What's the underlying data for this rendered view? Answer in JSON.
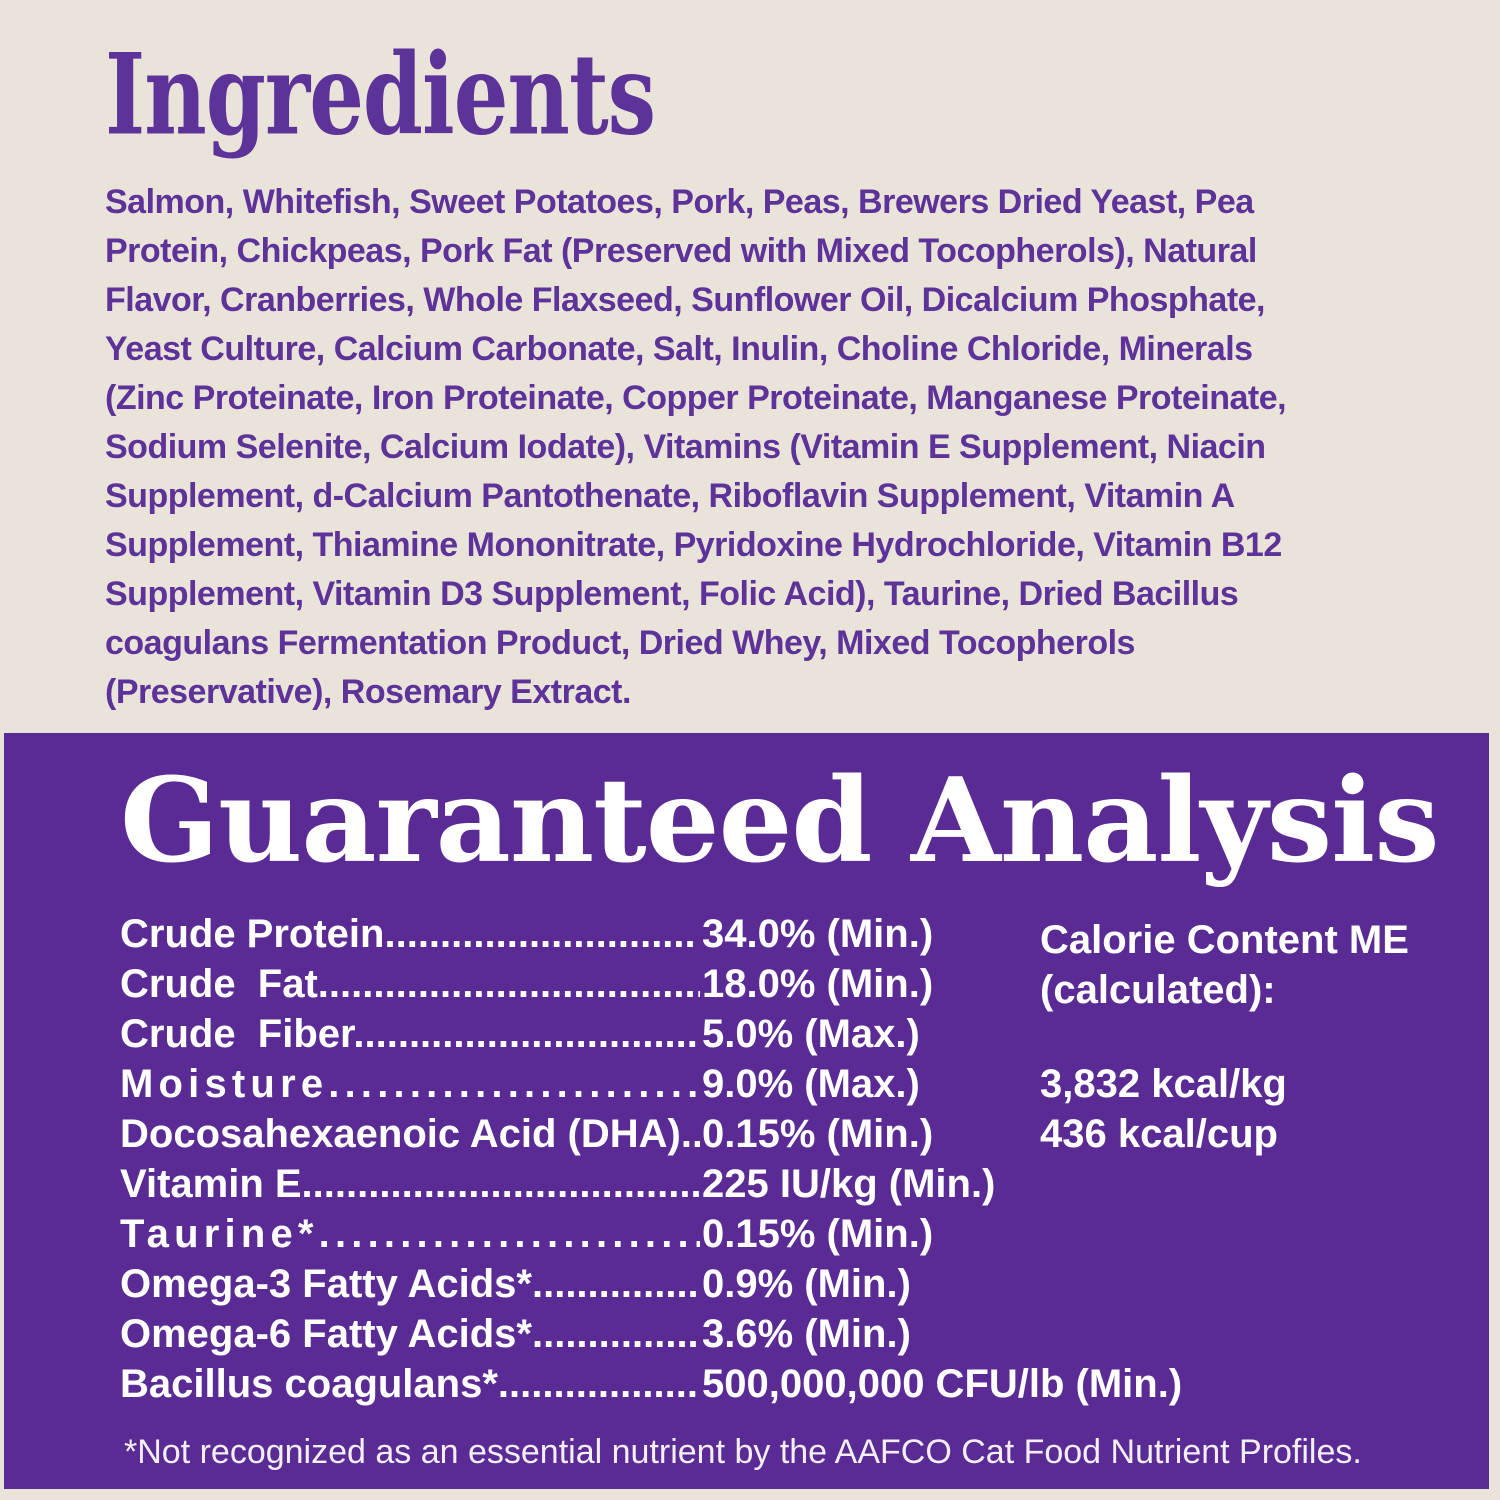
{
  "colors": {
    "page_background": "#e9e3da",
    "panel_background": "#5a2b94",
    "ingredients_text": "#5d3399",
    "analysis_text": "#ffffff",
    "footnote_text": "#f4eef6"
  },
  "ingredients": {
    "title": "Ingredients",
    "text": "Salmon, Whitefish, Sweet Potatoes, Pork, Peas, Brewers Dried Yeast, Pea\nProtein, Chickpeas, Pork Fat (Preserved with Mixed Tocopherols), Natural\nFlavor, Cranberries, Whole Flaxseed, Sunflower Oil, Dicalcium Phosphate,\nYeast Culture, Calcium Carbonate, Salt, Inulin, Choline Chloride, Minerals\n(Zinc Proteinate, Iron Proteinate, Copper Proteinate, Manganese Proteinate,\nSodium Selenite, Calcium Iodate), Vitamins (Vitamin E Supplement, Niacin\nSupplement, d-Calcium Pantothenate, Riboflavin Supplement, Vitamin A\nSupplement, Thiamine Mononitrate, Pyridoxine Hydrochloride, Vitamin B12\nSupplement, Vitamin D3 Supplement, Folic Acid), Taurine, Dried Bacillus\ncoagulans Fermentation Product, Dried Whey, Mixed Tocopherols\n(Preservative), Rosemary Extract."
  },
  "analysis": {
    "title": "Guaranteed Analysis",
    "rows": [
      {
        "label": "Crude Protein............................",
        "value": "34.0% (Min.)"
      },
      {
        "label": "Crude  Fat...................................",
        "value": "18.0% (Min.)"
      },
      {
        "label": "Crude  Fiber...............................",
        "value": "5.0% (Max.)"
      },
      {
        "label": "Moisture...........................",
        "value": "9.0% (Max.)"
      },
      {
        "label": "Docosahexaenoic Acid (DHA).....",
        "value": "0.15% (Min.)"
      },
      {
        "label": "Vitamin E....................................",
        "value": "225 IU/kg (Min.)"
      },
      {
        "label": "Taurine*.........................",
        "value": "0.15% (Min.)"
      },
      {
        "label": "Omega-3 Fatty Acids*................",
        "value": "0.9% (Min.)"
      },
      {
        "label": "Omega-6 Fatty Acids*................",
        "value": "3.6% (Min.)"
      },
      {
        "label": "Bacillus coagulans*...................",
        "value": "500,000,000 CFU/lb (Min.)"
      }
    ],
    "calories": {
      "line1": "Calorie Content ME",
      "line2": "(calculated):",
      "kcal_per_kg": "3,832 kcal/kg",
      "kcal_per_cup": "436 kcal/cup"
    },
    "footnote": "*Not recognized as an essential nutrient by the AAFCO Cat Food Nutrient Profiles."
  }
}
